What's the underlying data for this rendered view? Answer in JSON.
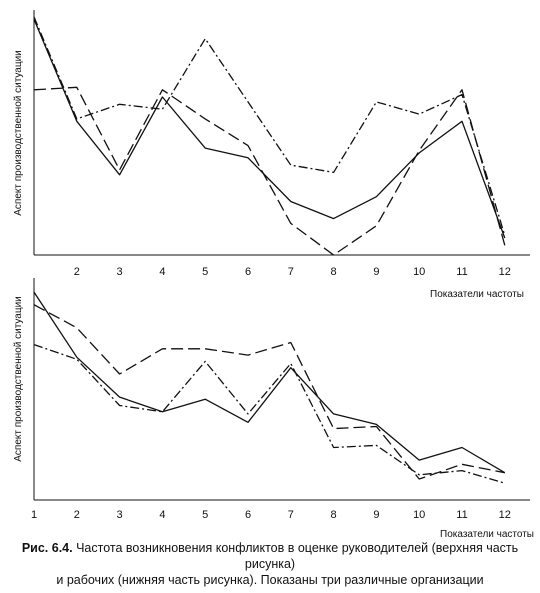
{
  "chart_data": [
    {
      "type": "line",
      "ylabel": "Аспект производственной ситуации",
      "xlabel": "Показатели частоты",
      "x": [
        1,
        2,
        3,
        4,
        5,
        6,
        7,
        8,
        9,
        10,
        11,
        12
      ],
      "x_tick_labels": [
        "2",
        "3",
        "4",
        "5",
        "6",
        "7",
        "8",
        "9",
        "10",
        "11",
        "12"
      ],
      "ylim": [
        0,
        100
      ],
      "grid": false,
      "series": [
        {
          "style": "solid",
          "values": [
            97,
            55,
            33,
            65,
            44,
            40,
            22,
            15,
            24,
            42,
            55,
            7
          ]
        },
        {
          "style": "dashed",
          "values": [
            68,
            69,
            35,
            68,
            56,
            45,
            13,
            0,
            12,
            43,
            68,
            4
          ]
        },
        {
          "style": "dash-dot",
          "values": [
            98,
            56,
            62,
            60,
            89,
            63,
            37,
            34,
            63,
            58,
            66,
            8
          ]
        }
      ]
    },
    {
      "type": "line",
      "ylabel": "Аспект производственной ситуации",
      "xlabel": "Показатели частоты",
      "x": [
        1,
        2,
        3,
        4,
        5,
        6,
        7,
        8,
        9,
        10,
        11,
        12
      ],
      "x_tick_labels": [
        "1",
        "2",
        "3",
        "4",
        "5",
        "6",
        "7",
        "8",
        "9",
        "10",
        "11",
        "12"
      ],
      "ylim": [
        0,
        100
      ],
      "grid": false,
      "series": [
        {
          "style": "solid",
          "values": [
            99,
            68,
            49,
            42,
            48,
            37,
            63,
            41,
            36,
            19,
            25,
            13
          ]
        },
        {
          "style": "dashed",
          "values": [
            93,
            82,
            60,
            72,
            72,
            69,
            75,
            34,
            35,
            10,
            17,
            13
          ]
        },
        {
          "style": "dash-dot",
          "values": [
            74,
            67,
            45,
            42,
            66,
            41,
            65,
            25,
            26,
            12,
            14,
            8
          ]
        }
      ]
    }
  ],
  "caption": {
    "figure_number": "Рис. 6.4.",
    "line1": "Частота возникновения конфликтов в оценке руководителей (верхняя часть рисунка)",
    "line2": "и рабочих (нижняя часть рисунка). Показаны три различные организации"
  }
}
